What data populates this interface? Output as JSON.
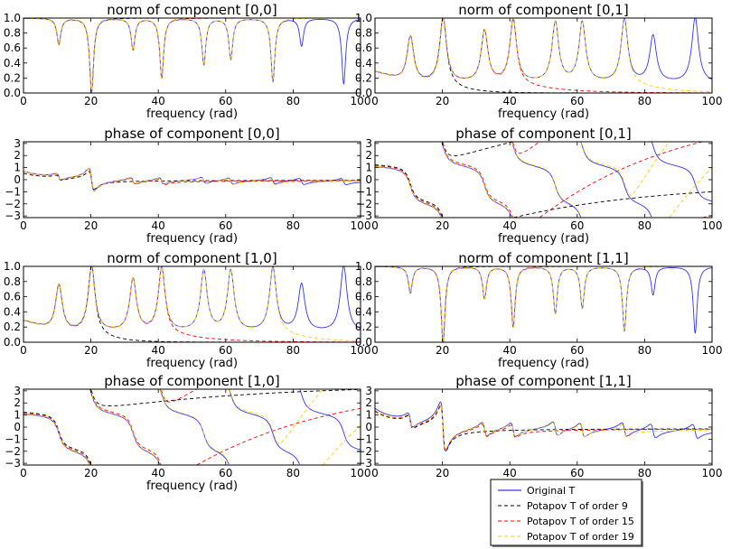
{
  "figure": {
    "panels": [
      {
        "title": "norm of component [0,0]",
        "xlabel": "frequency (rad)",
        "type": "norm",
        "xlim": [
          0,
          100
        ],
        "ylim": [
          0,
          1.0
        ],
        "yticks": [
          "0.0",
          "0.2",
          "0.4",
          "0.6",
          "0.8",
          "1.0"
        ],
        "xticks": [
          "0",
          "20",
          "40",
          "60",
          "80",
          "100"
        ]
      },
      {
        "title": "norm of component [0,1]",
        "xlabel": "frequency (rad)",
        "type": "norm",
        "xlim": [
          0,
          100
        ],
        "ylim": [
          0,
          1.0
        ],
        "yticks": [
          "0.0",
          "0.2",
          "0.4",
          "0.6",
          "0.8",
          "1.0"
        ],
        "xticks": [
          "0",
          "20",
          "40",
          "60",
          "80",
          "100"
        ]
      },
      {
        "title": "phase of component [0,0]",
        "xlabel": "frequency (rad)",
        "type": "phase",
        "xlim": [
          0,
          100
        ],
        "ylim": [
          -3.14,
          3.14
        ],
        "yticks": [
          "3",
          "2",
          "1",
          "0",
          "−1",
          "−2",
          "−3"
        ],
        "xticks": [
          "0",
          "20",
          "40",
          "60",
          "80",
          "100"
        ]
      },
      {
        "title": "phase of component [0,1]",
        "xlabel": "frequency (rad)",
        "type": "phase",
        "xlim": [
          0,
          100
        ],
        "ylim": [
          -3.14,
          3.14
        ],
        "yticks": [
          "3",
          "2",
          "1",
          "0",
          "−1",
          "−2",
          "−3"
        ],
        "xticks": [
          "0",
          "20",
          "40",
          "60",
          "80",
          "100"
        ]
      },
      {
        "title": "norm of component [1,0]",
        "xlabel": "frequency (rad)",
        "type": "norm",
        "xlim": [
          0,
          100
        ],
        "ylim": [
          0,
          1.0
        ],
        "yticks": [
          "0.0",
          "0.2",
          "0.4",
          "0.6",
          "0.8",
          "1.0"
        ],
        "xticks": [
          "0",
          "20",
          "40",
          "60",
          "80",
          "100"
        ]
      },
      {
        "title": "norm of component [1,1]",
        "xlabel": "frequency (rad)",
        "type": "norm",
        "xlim": [
          0,
          100
        ],
        "ylim": [
          0,
          1.0
        ],
        "yticks": [
          "0.0",
          "0.2",
          "0.4",
          "0.6",
          "0.8",
          "1.0"
        ],
        "xticks": [
          "0",
          "20",
          "40",
          "60",
          "80",
          "100"
        ]
      },
      {
        "title": "phase of component [1,0]",
        "xlabel": "frequency (rad)",
        "type": "phase",
        "xlim": [
          0,
          100
        ],
        "ylim": [
          -3.14,
          3.14
        ],
        "yticks": [
          "3",
          "2",
          "1",
          "0",
          "−1",
          "−2",
          "−3"
        ],
        "xticks": [
          "0",
          "20",
          "40",
          "60",
          "80",
          "100"
        ]
      },
      {
        "title": "phase of component [1,1]",
        "xlabel": "frequency (rad)",
        "type": "phase",
        "xlim": [
          0,
          100
        ],
        "ylim": [
          -3.14,
          3.14
        ],
        "yticks": [
          "3",
          "2",
          "1",
          "0",
          "−1",
          "−2",
          "−3"
        ],
        "xticks": [
          "0",
          "20",
          "40",
          "60",
          "80",
          "100"
        ]
      }
    ],
    "legend": [
      {
        "label": "Original T",
        "color": "#0000ff",
        "dash": "solid"
      },
      {
        "label": "Potapov T of order 9",
        "color": "#000000",
        "dash": "dashed"
      },
      {
        "label": "Potapov T of order 15",
        "color": "#ff0000",
        "dash": "dashed"
      },
      {
        "label": "Potapov T of order 19",
        "color": "#ffcc00",
        "dash": "dashed"
      }
    ]
  },
  "chart_data": [
    {
      "type": "line",
      "title": "norm of component [0,0]",
      "xlabel": "frequency (rad)",
      "ylabel": "",
      "xlim": [
        0,
        100
      ],
      "ylim": [
        0,
        1.0
      ],
      "resonances": [
        10.5,
        20.2,
        32.5,
        41.0,
        53.5,
        61.5,
        74.0,
        82.5,
        95.0
      ],
      "minima": [
        0.65,
        0.0,
        0.58,
        0.2,
        0.38,
        0.45,
        0.15,
        0.63,
        0.12
      ],
      "series_names": [
        "Original T",
        "Potapov T of order 9",
        "Potapov T of order 15",
        "Potapov T of order 19"
      ]
    },
    {
      "type": "line",
      "title": "norm of component [0,1]",
      "xlabel": "frequency (rad)",
      "ylabel": "",
      "xlim": [
        0,
        100
      ],
      "ylim": [
        0,
        1.0
      ],
      "resonances": [
        10.5,
        20.2,
        32.5,
        41.0,
        53.5,
        61.5,
        74.0,
        82.5,
        95.0
      ],
      "peaks": [
        0.75,
        1.0,
        0.82,
        0.97,
        0.93,
        0.93,
        0.97,
        0.75,
        1.0
      ],
      "series_names": [
        "Original T",
        "Potapov T of order 9",
        "Potapov T of order 15",
        "Potapov T of order 19"
      ]
    },
    {
      "type": "line",
      "title": "phase of component [0,0]",
      "xlabel": "frequency (rad)",
      "ylabel": "",
      "xlim": [
        0,
        100
      ],
      "ylim": [
        -3.14,
        3.14
      ],
      "series_names": [
        "Original T",
        "Potapov T of order 9",
        "Potapov T of order 15",
        "Potapov T of order 19"
      ]
    },
    {
      "type": "line",
      "title": "phase of component [0,1]",
      "xlabel": "frequency (rad)",
      "ylabel": "",
      "xlim": [
        0,
        100
      ],
      "ylim": [
        -3.14,
        3.14
      ],
      "series_names": [
        "Original T",
        "Potapov T of order 9",
        "Potapov T of order 15",
        "Potapov T of order 19"
      ]
    },
    {
      "type": "line",
      "title": "norm of component [1,0]",
      "xlabel": "frequency (rad)",
      "ylabel": "",
      "xlim": [
        0,
        100
      ],
      "ylim": [
        0,
        1.0
      ],
      "resonances": [
        10.5,
        20.2,
        32.5,
        41.0,
        53.5,
        61.5,
        74.0,
        82.5,
        95.0
      ],
      "peaks": [
        0.75,
        1.0,
        0.82,
        0.97,
        0.93,
        0.93,
        0.97,
        0.75,
        1.0
      ],
      "series_names": [
        "Original T",
        "Potapov T of order 9",
        "Potapov T of order 15",
        "Potapov T of order 19"
      ]
    },
    {
      "type": "line",
      "title": "norm of component [1,1]",
      "xlabel": "frequency (rad)",
      "ylabel": "",
      "xlim": [
        0,
        100
      ],
      "ylim": [
        0,
        1.0
      ],
      "resonances": [
        10.5,
        20.2,
        32.5,
        41.0,
        53.5,
        61.5,
        74.0,
        82.5,
        95.0
      ],
      "minima": [
        0.65,
        0.0,
        0.58,
        0.2,
        0.38,
        0.45,
        0.15,
        0.63,
        0.12
      ],
      "series_names": [
        "Original T",
        "Potapov T of order 9",
        "Potapov T of order 15",
        "Potapov T of order 19"
      ]
    },
    {
      "type": "line",
      "title": "phase of component [1,0]",
      "xlabel": "frequency (rad)",
      "ylabel": "",
      "xlim": [
        0,
        100
      ],
      "ylim": [
        -3.14,
        3.14
      ],
      "series_names": [
        "Original T",
        "Potapov T of order 9",
        "Potapov T of order 15",
        "Potapov T of order 19"
      ]
    },
    {
      "type": "line",
      "title": "phase of component [1,1]",
      "xlabel": "frequency (rad)",
      "ylabel": "",
      "xlim": [
        0,
        100
      ],
      "ylim": [
        -3.14,
        3.14
      ],
      "series_names": [
        "Original T",
        "Potapov T of order 9",
        "Potapov T of order 15",
        "Potapov T of order 19"
      ]
    }
  ]
}
